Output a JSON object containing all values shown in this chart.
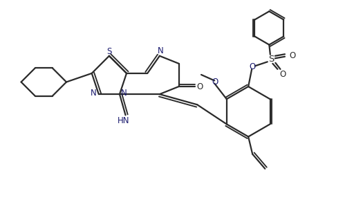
{
  "background_color": "#ffffff",
  "line_color": "#2a2a2a",
  "line_width": 1.6,
  "figsize": [
    5.12,
    3.15
  ],
  "dpi": 100,
  "xlim": [
    0,
    10
  ],
  "ylim": [
    0,
    6.15
  ]
}
